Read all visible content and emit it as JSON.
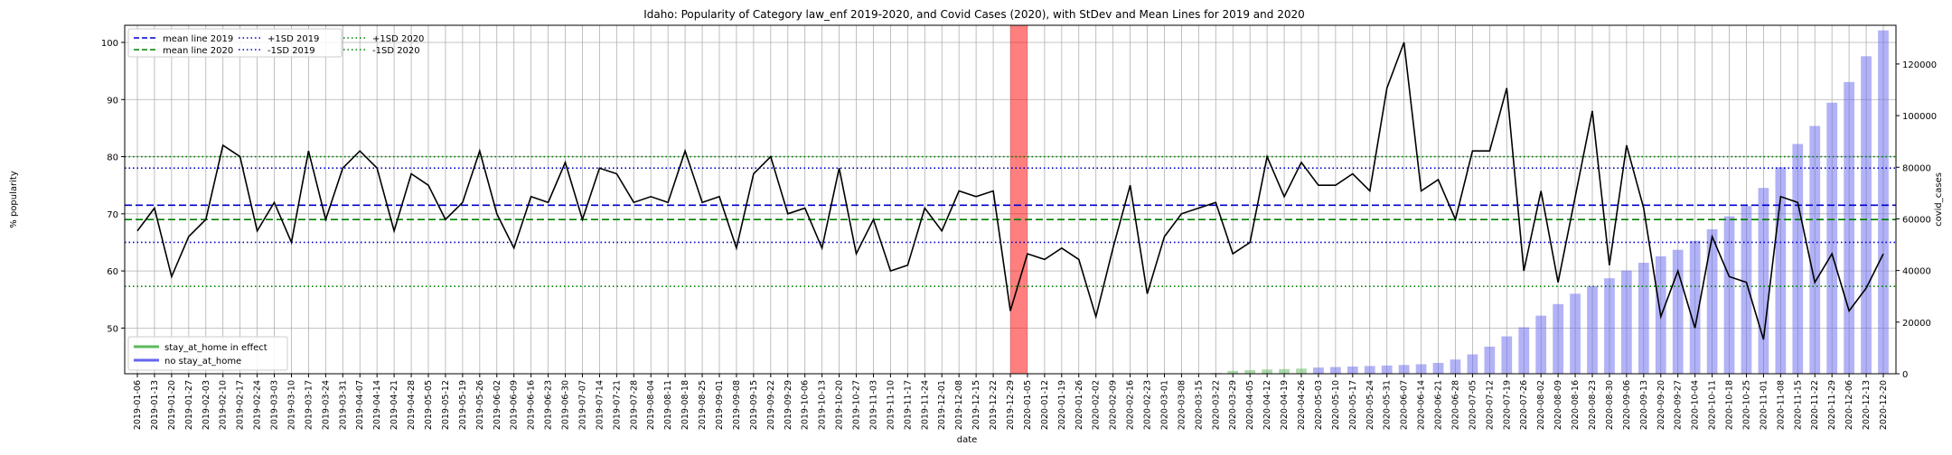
{
  "chart_data": {
    "type": "line",
    "title": "Idaho: Popularity of Category law_enf 2019-2020, and Covid Cases (2020), with StDev and Mean Lines for 2019 and 2020",
    "xlabel": "date",
    "ylabel": "% popularity",
    "y2label": "covid_cases",
    "ylim": [
      42,
      103
    ],
    "y2lim": [
      0,
      135000
    ],
    "yticks": [
      50,
      60,
      70,
      80,
      90,
      100
    ],
    "y2ticks": [
      0,
      20000,
      40000,
      60000,
      80000,
      100000,
      120000
    ],
    "grid": true,
    "dates": [
      "2019-01-06",
      "2019-01-13",
      "2019-01-20",
      "2019-01-27",
      "2019-02-03",
      "2019-02-10",
      "2019-02-17",
      "2019-02-24",
      "2019-03-03",
      "2019-03-10",
      "2019-03-17",
      "2019-03-24",
      "2019-03-31",
      "2019-04-07",
      "2019-04-14",
      "2019-04-21",
      "2019-04-28",
      "2019-05-05",
      "2019-05-12",
      "2019-05-19",
      "2019-05-26",
      "2019-06-02",
      "2019-06-09",
      "2019-06-16",
      "2019-06-23",
      "2019-06-30",
      "2019-07-07",
      "2019-07-14",
      "2019-07-21",
      "2019-07-28",
      "2019-08-04",
      "2019-08-11",
      "2019-08-18",
      "2019-08-25",
      "2019-09-01",
      "2019-09-08",
      "2019-09-15",
      "2019-09-22",
      "2019-09-29",
      "2019-10-06",
      "2019-10-13",
      "2019-10-20",
      "2019-10-27",
      "2019-11-03",
      "2019-11-10",
      "2019-11-17",
      "2019-11-24",
      "2019-12-01",
      "2019-12-08",
      "2019-12-15",
      "2019-12-22",
      "2019-12-29",
      "2020-01-05",
      "2020-01-12",
      "2020-01-19",
      "2020-01-26",
      "2020-02-02",
      "2020-02-09",
      "2020-02-16",
      "2020-02-23",
      "2020-03-01",
      "2020-03-08",
      "2020-03-15",
      "2020-03-22",
      "2020-03-29",
      "2020-04-05",
      "2020-04-12",
      "2020-04-19",
      "2020-04-26",
      "2020-05-03",
      "2020-05-10",
      "2020-05-17",
      "2020-05-24",
      "2020-05-31",
      "2020-06-07",
      "2020-06-14",
      "2020-06-21",
      "2020-06-28",
      "2020-07-05",
      "2020-07-12",
      "2020-07-19",
      "2020-07-26",
      "2020-08-02",
      "2020-08-09",
      "2020-08-16",
      "2020-08-23",
      "2020-08-30",
      "2020-09-06",
      "2020-09-13",
      "2020-09-20",
      "2020-09-27",
      "2020-10-04",
      "2020-10-11",
      "2020-10-18",
      "2020-10-25",
      "2020-11-01",
      "2020-11-08",
      "2020-11-15",
      "2020-11-22",
      "2020-11-29",
      "2020-12-06",
      "2020-12-13",
      "2020-12-20"
    ],
    "series": [
      {
        "name": "",
        "color": "#000000",
        "values": [
          67,
          71,
          59,
          66,
          69,
          82,
          80,
          67,
          72,
          65,
          81,
          69,
          78,
          81,
          78,
          67,
          77,
          75,
          69,
          72,
          81,
          70,
          64,
          73,
          72,
          79,
          69,
          78,
          77,
          72,
          73,
          72,
          81,
          72,
          73,
          64,
          77,
          80,
          70,
          71,
          64,
          78,
          63,
          69,
          60,
          61,
          71,
          67,
          74,
          73,
          74,
          53,
          63,
          62,
          64,
          62,
          52,
          64,
          75,
          56,
          66,
          70,
          71,
          72,
          63,
          65,
          80,
          73,
          79,
          75,
          75,
          77,
          74,
          92,
          100,
          74,
          76,
          69,
          81,
          81,
          92,
          60,
          74,
          58,
          73,
          88,
          61,
          82,
          71,
          52,
          60,
          50,
          66,
          59,
          58,
          48,
          73,
          72,
          58,
          63,
          53,
          57,
          63
        ]
      }
    ],
    "bars": {
      "name": "covid_cases",
      "color": "#6666ee",
      "start_date": "2020-03-22",
      "values": [
        300,
        1100,
        1400,
        1650,
        1800,
        2000,
        2400,
        2600,
        2800,
        3000,
        3200,
        3400,
        3700,
        4200,
        5500,
        7500,
        10500,
        14500,
        18000,
        22500,
        27000,
        31000,
        34000,
        37000,
        40000,
        43000,
        45500,
        48000,
        51500,
        56000,
        61000,
        65000,
        72000,
        80000,
        89000,
        96000,
        105000,
        113000,
        123000,
        133000
      ]
    },
    "hlines": {
      "mean_2019": 71.5,
      "mean_2020": 69,
      "plus_1sd_2019": 78,
      "minus_1sd_2019": 65,
      "plus_1sd_2020": 80,
      "minus_1sd_2020": 57.3
    },
    "highlight_span": {
      "start": "2019-12-29",
      "end": "2020-01-05",
      "color": "#ff0000"
    },
    "stay_at_home_period": {
      "start": "2020-03-29",
      "end": "2020-04-26"
    },
    "legend_top": [
      {
        "label": "mean line 2019",
        "color": "#0000cc",
        "style": "dashed"
      },
      {
        "label": "mean line 2020",
        "color": "#008000",
        "style": "dashed"
      },
      {
        "label": "+1SD 2019",
        "color": "#0000cc",
        "style": "dotted"
      },
      {
        "label": "-1SD 2019",
        "color": "#0000cc",
        "style": "dotted"
      },
      {
        "label": "+1SD 2020",
        "color": "#008000",
        "style": "dotted"
      },
      {
        "label": "-1SD 2020",
        "color": "#008000",
        "style": "dotted"
      }
    ],
    "legend_bottom": [
      {
        "label": "stay_at_home in effect",
        "color": "#5cb85c"
      },
      {
        "label": "no stay_at_home",
        "color": "#6666ee"
      }
    ],
    "legend_placement": [
      "upper-left",
      "lower-left"
    ]
  }
}
